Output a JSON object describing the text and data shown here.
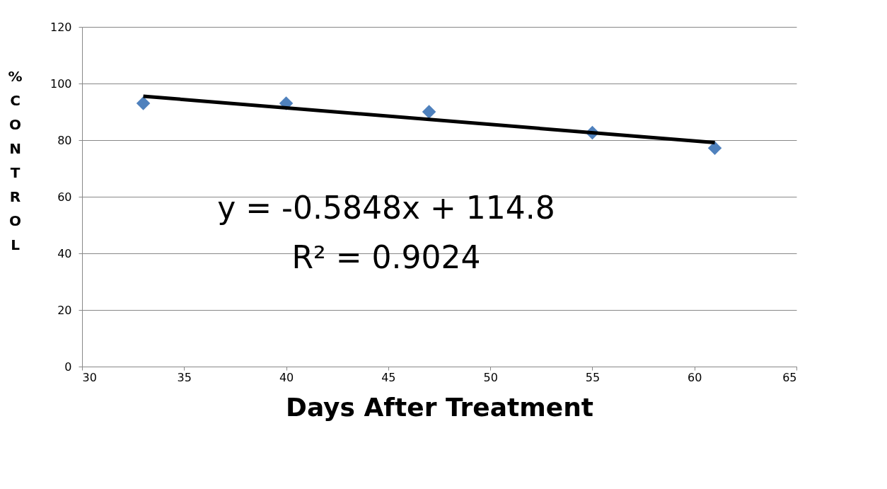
{
  "chart_data": {
    "type": "scatter",
    "xlabel": "Days After Treatment",
    "ylabel": "% CONTROL",
    "xlim": [
      30,
      65
    ],
    "xticks": [
      30,
      35,
      40,
      45,
      50,
      55,
      60,
      65
    ],
    "ylim": [
      0,
      120
    ],
    "yticks": [
      0,
      20,
      40,
      60,
      80,
      100,
      120
    ],
    "grid": "y",
    "series": [
      {
        "color": "#4f81bd",
        "marker": "diamond",
        "x": [
          33,
          40,
          47,
          55,
          61
        ],
        "values": [
          93,
          93,
          90,
          82.6,
          77.2
        ]
      },
      {
        "type": "line",
        "color": "#000000",
        "marker": "none",
        "line_style": "solid",
        "x": [
          33,
          61
        ],
        "values": [
          95.5,
          79.1
        ]
      }
    ],
    "annotations": [
      "y = -0.5848x + 114.8",
      "R² = 0.9024"
    ]
  }
}
